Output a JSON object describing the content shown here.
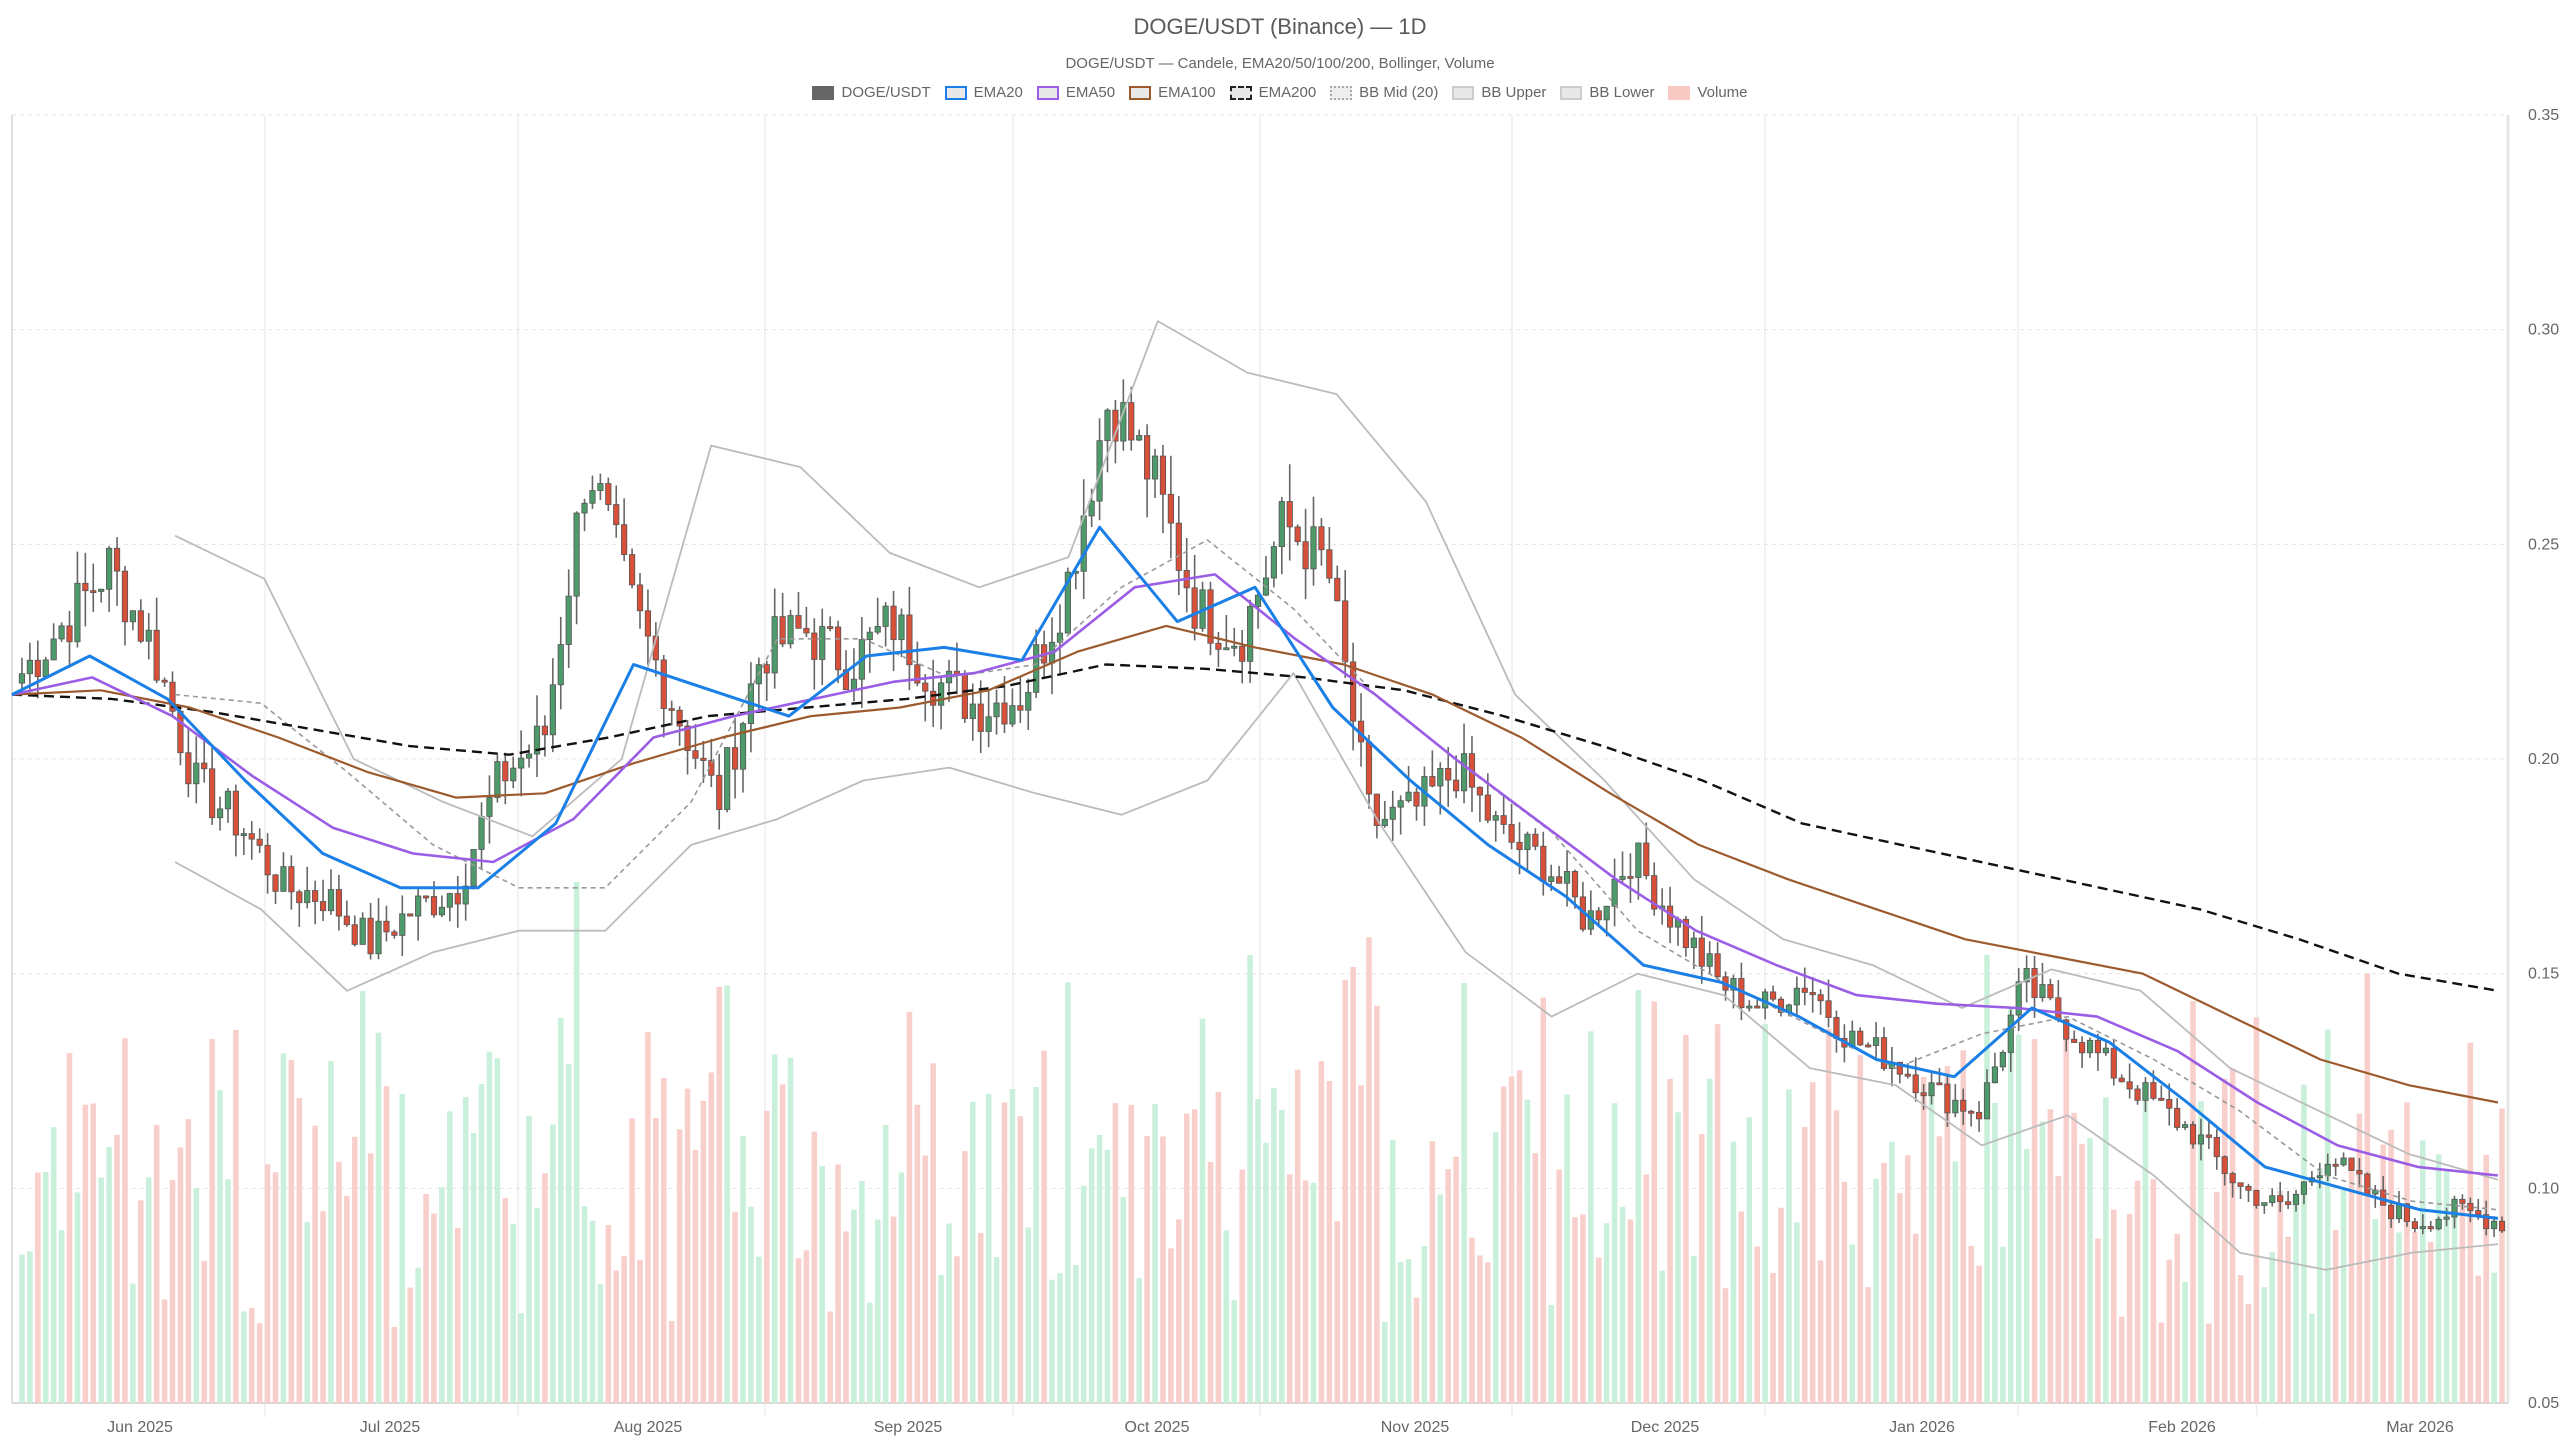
{
  "header": {
    "title": "DOGE/USDT (Binance) — 1D",
    "subtitle": "DOGE/USDT — Candele, EMA20/50/100/200, Bollinger, Volume"
  },
  "legend": [
    {
      "label": "DOGE/USDT",
      "fill": "#666666",
      "border": "#666666",
      "style": "solid"
    },
    {
      "label": "EMA20",
      "fill": "#e8e8e8",
      "border": "#1a7fe6",
      "style": "solid"
    },
    {
      "label": "EMA50",
      "fill": "#e8e8e8",
      "border": "#9b5de5",
      "style": "solid"
    },
    {
      "label": "EMA100",
      "fill": "#e8e8e8",
      "border": "#9c5a2e",
      "style": "solid"
    },
    {
      "label": "EMA200",
      "fill": "#e8e8e8",
      "border": "#222222",
      "style": "dashed"
    },
    {
      "label": "BB Mid (20)",
      "fill": "#eeeeee",
      "border": "#aaaaaa",
      "style": "dotted"
    },
    {
      "label": "BB Upper",
      "fill": "#e8e8e8",
      "border": "#cccccc",
      "style": "solid"
    },
    {
      "label": "BB Lower",
      "fill": "#e8e8e8",
      "border": "#cccccc",
      "style": "solid"
    },
    {
      "label": "Volume",
      "fill": "#f9c9c3",
      "border": "#f9c9c3",
      "style": "solid"
    }
  ],
  "colors": {
    "up": "#4e9a6a",
    "down": "#d9503a",
    "wick": "#666666",
    "vol_up": "#c9f0da",
    "vol_down": "#f9cfcb",
    "ema20": "#1a7fe6",
    "ema50": "#9b5de5",
    "ema100": "#9c5a2e",
    "ema200": "#111111",
    "bb": "#bbbbbb",
    "bb_mid": "#999999",
    "grid": "#e3e3e3"
  },
  "chart_data": {
    "type": "candlestick",
    "title": "DOGE/USDT (Binance) — 1D",
    "subtitle": "DOGE/USDT — Candele, EMA20/50/100/200, Bollinger, Volume",
    "xlabel": "",
    "ylabel": "",
    "ylim": [
      0.05,
      0.35
    ],
    "y_ticks": [
      "0.35",
      "0.30",
      "0.25",
      "0.20",
      "0.15",
      "0.10",
      "0.05"
    ],
    "x_ticks": [
      "Jun 2025",
      "Jul 2025",
      "Aug 2025",
      "Sep 2025",
      "Oct 2025",
      "Nov 2025",
      "Dec 2025",
      "Jan 2026",
      "Feb 2026",
      "Mar 2026"
    ],
    "grid": true,
    "legend_position": "top",
    "date_range": [
      "2025-05-01",
      "2026-03-10"
    ],
    "closes_weekly_approx": [
      0.22,
      0.232,
      0.245,
      0.226,
      0.194,
      0.185,
      0.17,
      0.168,
      0.157,
      0.165,
      0.17,
      0.196,
      0.205,
      0.27,
      0.236,
      0.212,
      0.19,
      0.225,
      0.23,
      0.222,
      0.232,
      0.218,
      0.212,
      0.215,
      0.24,
      0.285,
      0.265,
      0.235,
      0.228,
      0.255,
      0.245,
      0.185,
      0.188,
      0.198,
      0.182,
      0.176,
      0.162,
      0.178,
      0.162,
      0.148,
      0.142,
      0.148,
      0.135,
      0.13,
      0.122,
      0.118,
      0.148,
      0.138,
      0.128,
      0.12,
      0.112,
      0.1,
      0.095,
      0.108,
      0.098,
      0.092,
      0.095,
      0.092
    ],
    "series": [
      {
        "name": "EMA20",
        "values_sampled": [
          0.215,
          0.224,
          0.214,
          0.195,
          0.178,
          0.17,
          0.17,
          0.185,
          0.222,
          0.216,
          0.21,
          0.224,
          0.226,
          0.223,
          0.254,
          0.232,
          0.24,
          0.212,
          0.195,
          0.18,
          0.168,
          0.152,
          0.148,
          0.14,
          0.13,
          0.126,
          0.142,
          0.134,
          0.12,
          0.105,
          0.1,
          0.095,
          0.093
        ]
      },
      {
        "name": "EMA50",
        "values_sampled": [
          0.215,
          0.219,
          0.21,
          0.196,
          0.184,
          0.178,
          0.176,
          0.186,
          0.205,
          0.21,
          0.214,
          0.218,
          0.22,
          0.225,
          0.24,
          0.243,
          0.228,
          0.215,
          0.2,
          0.186,
          0.172,
          0.16,
          0.152,
          0.145,
          0.143,
          0.142,
          0.14,
          0.132,
          0.12,
          0.11,
          0.105,
          0.103
        ]
      },
      {
        "name": "EMA100",
        "values_sampled": [
          0.215,
          0.216,
          0.212,
          0.205,
          0.197,
          0.191,
          0.192,
          0.199,
          0.205,
          0.21,
          0.212,
          0.216,
          0.225,
          0.231,
          0.226,
          0.222,
          0.215,
          0.205,
          0.192,
          0.18,
          0.172,
          0.165,
          0.158,
          0.154,
          0.15,
          0.14,
          0.13,
          0.124,
          0.12
        ]
      },
      {
        "name": "EMA200",
        "values_sampled": [
          0.215,
          0.214,
          0.211,
          0.207,
          0.203,
          0.201,
          0.205,
          0.21,
          0.212,
          0.214,
          0.217,
          0.222,
          0.221,
          0.219,
          0.216,
          0.21,
          0.203,
          0.195,
          0.185,
          0.18,
          0.175,
          0.17,
          0.165,
          0.158,
          0.15,
          0.146
        ]
      },
      {
        "name": "BB Mid (20)",
        "values_sampled": [
          0.215,
          0.213,
          0.197,
          0.18,
          0.17,
          0.17,
          0.19,
          0.228,
          0.228,
          0.219,
          0.222,
          0.24,
          0.251,
          0.235,
          0.214,
          0.198,
          0.183,
          0.16,
          0.148,
          0.138,
          0.128,
          0.136,
          0.14,
          0.13,
          0.118,
          0.103,
          0.097,
          0.095
        ]
      },
      {
        "name": "BB Upper",
        "values_sampled": [
          0.252,
          0.242,
          0.2,
          0.19,
          0.182,
          0.2,
          0.273,
          0.268,
          0.248,
          0.24,
          0.247,
          0.302,
          0.29,
          0.285,
          0.26,
          0.215,
          0.195,
          0.172,
          0.158,
          0.152,
          0.142,
          0.151,
          0.146,
          0.128,
          0.118,
          0.108,
          0.102
        ]
      },
      {
        "name": "BB Lower",
        "values_sampled": [
          0.176,
          0.165,
          0.146,
          0.155,
          0.16,
          0.16,
          0.18,
          0.186,
          0.195,
          0.198,
          0.192,
          0.187,
          0.195,
          0.22,
          0.185,
          0.155,
          0.14,
          0.15,
          0.145,
          0.128,
          0.124,
          0.11,
          0.117,
          0.103,
          0.085,
          0.081,
          0.085,
          0.087
        ]
      }
    ]
  },
  "axes": {
    "y_labels": [
      "0.35",
      "0.30",
      "0.25",
      "0.20",
      "0.15",
      "0.10",
      "0.05"
    ],
    "x_labels": [
      "Jun 2025",
      "Jul 2025",
      "Aug 2025",
      "Sep 2025",
      "Oct 2025",
      "Nov 2025",
      "Dec 2025",
      "Jan 2026",
      "Feb 2026",
      "Mar 2026"
    ]
  }
}
